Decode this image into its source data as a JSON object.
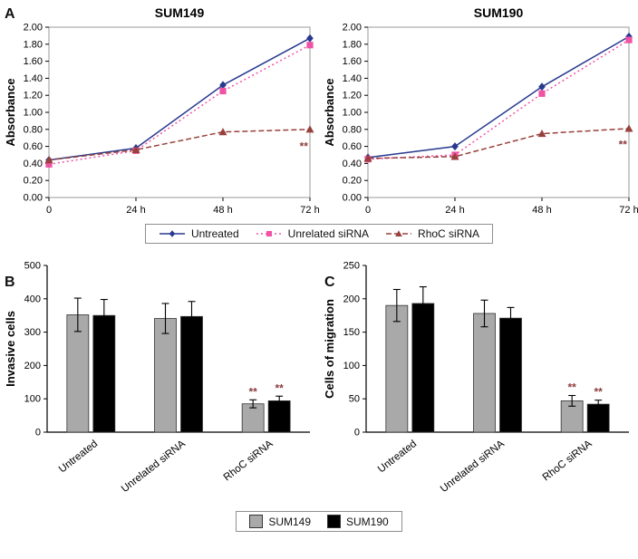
{
  "panels": {
    "a": "A",
    "b": "B",
    "c": "C"
  },
  "colors": {
    "untreated_line": "#28398f",
    "unrelated_line": "#f052a5",
    "rhoc_line": "#97403c",
    "sum149_bar": "#a9a9a9",
    "sum190_bar": "#000000",
    "significance": "#8b3a3a",
    "axis": "#000000",
    "plot_border": "#9a9a9a"
  },
  "chart_data": [
    {
      "id": "sum149-growth",
      "type": "line",
      "panel": "A",
      "title": "SUM149",
      "x": [
        0,
        24,
        48,
        72
      ],
      "xtick_labels": [
        "0",
        "24 h",
        "48 h",
        "72 h"
      ],
      "ylabel": "Absorbance",
      "ylim": [
        0,
        2
      ],
      "ytick_labels": [
        "0.00",
        "0.20",
        "0.40",
        "0.60",
        "0.80",
        "1.00",
        "1.20",
        "1.40",
        "1.60",
        "1.80",
        "2.00"
      ],
      "grid": false,
      "legend_position": "below-shared",
      "series": [
        {
          "name": "Untreated",
          "marker": "diamond",
          "line": "solid",
          "color": "#28398f",
          "values": [
            0.44,
            0.58,
            1.32,
            1.87
          ]
        },
        {
          "name": "Unrelated siRNA",
          "marker": "square",
          "line": "dotted",
          "color": "#f052a5",
          "values": [
            0.39,
            0.55,
            1.25,
            1.79
          ]
        },
        {
          "name": "RhoC siRNA",
          "marker": "triangle",
          "line": "dashed",
          "color": "#97403c",
          "values": [
            0.44,
            0.56,
            0.77,
            0.8
          ]
        }
      ],
      "annotations": [
        {
          "text": "**",
          "x": 2.93,
          "y": 0.56
        }
      ]
    },
    {
      "id": "sum190-growth",
      "type": "line",
      "panel": "A",
      "title": "SUM190",
      "x": [
        0,
        24,
        48,
        72
      ],
      "xtick_labels": [
        "0",
        "24 h",
        "48 h",
        "72 h"
      ],
      "ylabel": "Absorbance",
      "ylim": [
        0,
        2
      ],
      "ytick_labels": [
        "0.00",
        "0.20",
        "0.40",
        "0.60",
        "0.80",
        "1.00",
        "1.20",
        "1.40",
        "1.60",
        "1.80",
        "2.00"
      ],
      "grid": false,
      "legend_position": "below-shared",
      "series": [
        {
          "name": "Untreated",
          "marker": "diamond",
          "line": "solid",
          "color": "#28398f",
          "values": [
            0.47,
            0.6,
            1.3,
            1.89
          ]
        },
        {
          "name": "Unrelated siRNA",
          "marker": "square",
          "line": "dotted",
          "color": "#f052a5",
          "values": [
            0.45,
            0.5,
            1.22,
            1.85
          ]
        },
        {
          "name": "RhoC siRNA",
          "marker": "triangle",
          "line": "dashed",
          "color": "#97403c",
          "values": [
            0.46,
            0.48,
            0.75,
            0.81
          ]
        }
      ],
      "annotations": [
        {
          "text": "**",
          "x": 2.93,
          "y": 0.58
        }
      ]
    },
    {
      "id": "invasion",
      "type": "bar",
      "panel": "B",
      "title": "",
      "categories": [
        "Untreated",
        "Unrelated siRNA",
        "RhoC siRNA"
      ],
      "ylabel": "Invasive cells",
      "ylim": [
        0,
        500
      ],
      "ytick_labels": [
        "0",
        "100",
        "200",
        "300",
        "400",
        "500"
      ],
      "grid": false,
      "legend_position": "below-shared",
      "series": [
        {
          "name": "SUM149",
          "color": "#a9a9a9",
          "values": [
            352,
            341,
            85
          ],
          "errors": [
            50,
            45,
            12
          ],
          "sig": [
            "",
            "",
            "**"
          ]
        },
        {
          "name": "SUM190",
          "color": "#000000",
          "values": [
            350,
            347,
            94
          ],
          "errors": [
            48,
            45,
            14
          ],
          "sig": [
            "",
            "",
            "**"
          ]
        }
      ]
    },
    {
      "id": "migration",
      "type": "bar",
      "panel": "C",
      "title": "",
      "categories": [
        "Untreated",
        "Unrelated siRNA",
        "RhoC siRNA"
      ],
      "ylabel": "Cells of migration",
      "ylim": [
        0,
        250
      ],
      "ytick_labels": [
        "0",
        "50",
        "100",
        "150",
        "200",
        "250"
      ],
      "grid": false,
      "legend_position": "below-shared",
      "series": [
        {
          "name": "SUM149",
          "color": "#a9a9a9",
          "values": [
            190,
            178,
            47
          ],
          "errors": [
            24,
            20,
            8
          ],
          "sig": [
            "",
            "",
            "**"
          ]
        },
        {
          "name": "SUM190",
          "color": "#000000",
          "values": [
            193,
            171,
            42
          ],
          "errors": [
            25,
            16,
            6
          ],
          "sig": [
            "",
            "",
            "**"
          ]
        }
      ]
    }
  ],
  "legends": {
    "line_series": [
      "Untreated",
      "Unrelated siRNA",
      "RhoC siRNA"
    ],
    "bar_series": [
      "SUM149",
      "SUM190"
    ]
  }
}
